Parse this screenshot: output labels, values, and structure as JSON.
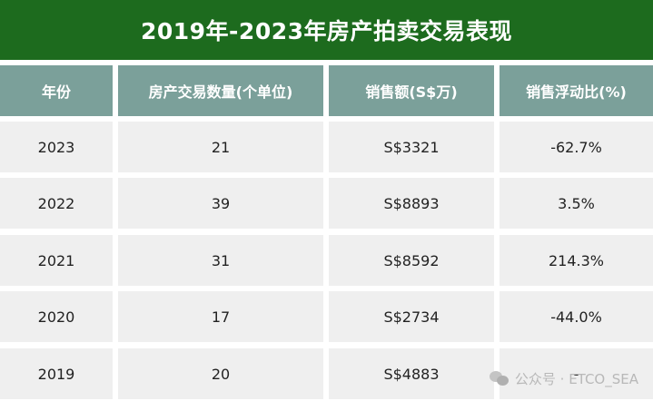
{
  "title": "2019年-2023年房产拍卖交易表现",
  "table": {
    "headers": [
      "年份",
      "房产交易数量(个单位)",
      "销售额(S$万)",
      "销售浮动比(%)"
    ],
    "rows": [
      [
        "2023",
        "21",
        "S$3321",
        "-62.7%"
      ],
      [
        "2022",
        "39",
        "S$8893",
        "3.5%"
      ],
      [
        "2021",
        "31",
        "S$8592",
        "214.3%"
      ],
      [
        "2020",
        "17",
        "S$2734",
        "-44.0%"
      ],
      [
        "2019",
        "20",
        "S$4883",
        "-"
      ]
    ]
  },
  "watermark": "公众号 · ETCO_SEA",
  "colors": {
    "title_bg": "#1d6b1e",
    "header_bg": "#7ba09a",
    "row_bg": "#efefef"
  }
}
